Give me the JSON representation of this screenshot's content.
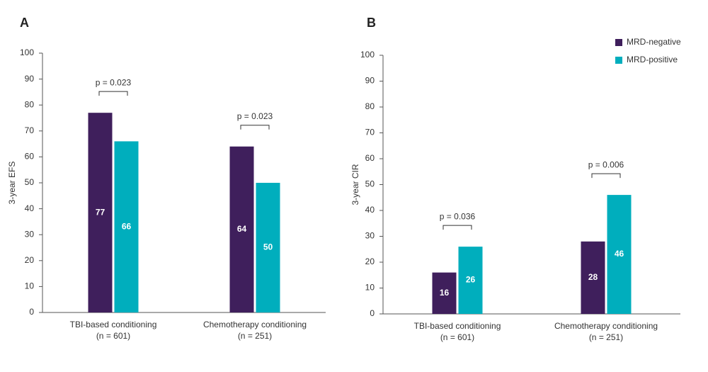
{
  "chart_data": [
    {
      "type": "bar",
      "panel": "A",
      "y_label": "3-year EFS",
      "categories": [
        "TBI-based conditioning",
        "Chemotherapy conditioning"
      ],
      "category_notes": [
        "(n = 601)",
        "(n = 251)"
      ],
      "p_values": [
        "p = 0.023",
        "p = 0.023"
      ],
      "series": [
        {
          "name": "MRD-negative",
          "color": "#3f1f5c",
          "values": [
            77,
            64
          ]
        },
        {
          "name": "MRD-positive",
          "color": "#00aebd",
          "values": [
            66,
            50
          ]
        }
      ],
      "ylim": [
        0,
        100
      ],
      "yticks": [
        0,
        10,
        20,
        30,
        40,
        50,
        60,
        70,
        80,
        90,
        100
      ]
    },
    {
      "type": "bar",
      "panel": "B",
      "y_label": "3-year CIR",
      "categories": [
        "TBI-based conditioning",
        "Chemotherapy conditioning"
      ],
      "category_notes": [
        "(n = 601)",
        "(n = 251)"
      ],
      "p_values": [
        "p = 0.036",
        "p = 0.006"
      ],
      "series": [
        {
          "name": "MRD-negative",
          "color": "#3f1f5c",
          "values": [
            16,
            28
          ]
        },
        {
          "name": "MRD-positive",
          "color": "#00aebd",
          "values": [
            26,
            46
          ]
        }
      ],
      "ylim": [
        0,
        100
      ],
      "yticks": [
        0,
        10,
        20,
        30,
        40,
        50,
        60,
        70,
        80,
        90,
        100
      ],
      "legend": "top-right"
    }
  ]
}
